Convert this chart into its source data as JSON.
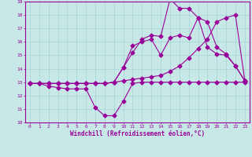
{
  "background_color": "#c8e8e8",
  "grid_color": "#aad8d8",
  "line_color": "#990099",
  "xlabel": "Windchill (Refroidissement éolien,°C)",
  "xlim": [
    -0.5,
    23.5
  ],
  "ylim": [
    10,
    19
  ],
  "yticks": [
    10,
    11,
    12,
    13,
    14,
    15,
    16,
    17,
    18,
    19
  ],
  "xticks": [
    0,
    1,
    2,
    3,
    4,
    5,
    6,
    7,
    8,
    9,
    10,
    11,
    12,
    13,
    14,
    15,
    16,
    17,
    18,
    19,
    20,
    21,
    22,
    23
  ],
  "series1_x": [
    0,
    1,
    2,
    3,
    4,
    5,
    6,
    7,
    8,
    9,
    10,
    11,
    12,
    13,
    14,
    15,
    16,
    17,
    18,
    19,
    20,
    21,
    22,
    23
  ],
  "series1_y": [
    12.9,
    12.9,
    12.7,
    12.6,
    12.5,
    12.5,
    12.5,
    11.1,
    10.5,
    10.5,
    11.6,
    12.9,
    13.0,
    13.0,
    13.0,
    13.0,
    13.0,
    13.0,
    13.0,
    13.0,
    13.0,
    13.0,
    13.0,
    13.0
  ],
  "series2_x": [
    0,
    1,
    2,
    3,
    4,
    5,
    6,
    7,
    8,
    9,
    10,
    11,
    12,
    13,
    14,
    15,
    16,
    17,
    18,
    19,
    20,
    21,
    22,
    23
  ],
  "series2_y": [
    12.9,
    12.9,
    12.9,
    12.9,
    12.9,
    12.9,
    12.9,
    12.9,
    12.9,
    13.0,
    14.1,
    15.7,
    16.0,
    16.2,
    15.0,
    16.3,
    16.5,
    16.3,
    17.8,
    15.6,
    15.1,
    15.0,
    14.2,
    13.1
  ],
  "series3_x": [
    0,
    1,
    2,
    3,
    4,
    5,
    6,
    7,
    8,
    9,
    10,
    11,
    12,
    13,
    14,
    15,
    16,
    17,
    18,
    19,
    20,
    21,
    22,
    23
  ],
  "series3_y": [
    12.9,
    12.9,
    12.9,
    12.9,
    12.9,
    12.9,
    12.9,
    12.9,
    12.9,
    13.0,
    14.1,
    15.2,
    16.2,
    16.5,
    16.4,
    19.2,
    18.5,
    18.5,
    17.8,
    17.5,
    15.6,
    15.1,
    14.2,
    13.1
  ],
  "series4_x": [
    0,
    1,
    2,
    3,
    4,
    5,
    6,
    7,
    8,
    9,
    10,
    11,
    12,
    13,
    14,
    15,
    16,
    17,
    18,
    19,
    20,
    21,
    22,
    23
  ],
  "series4_y": [
    12.9,
    12.9,
    12.9,
    12.9,
    12.9,
    12.9,
    12.9,
    12.9,
    12.9,
    13.0,
    13.1,
    13.2,
    13.3,
    13.4,
    13.5,
    13.8,
    14.2,
    14.8,
    15.5,
    16.2,
    17.5,
    17.8,
    18.0,
    13.1
  ]
}
